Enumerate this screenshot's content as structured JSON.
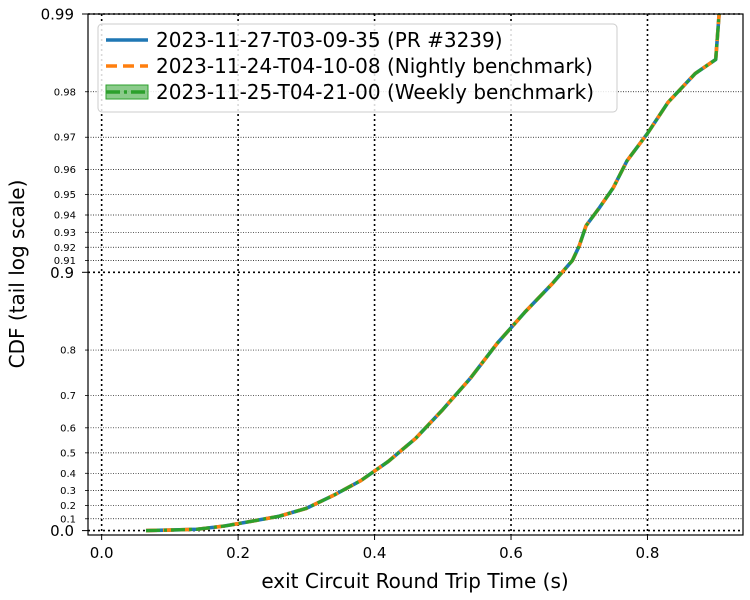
{
  "chart_data": {
    "type": "line",
    "xlabel": "exit Circuit Round Trip Time (s)",
    "ylabel": "CDF (tail log scale)",
    "xlim": [
      -0.02,
      0.94
    ],
    "x_ticks": [
      0.0,
      0.2,
      0.4,
      0.6,
      0.8
    ],
    "x_tick_labels": [
      "0.0",
      "0.2",
      "0.4",
      "0.6",
      "0.8"
    ],
    "y_scale": "tail log",
    "ylim": [
      -0.04,
      0.99
    ],
    "y_major_ticks": [
      0.0,
      0.9,
      0.99
    ],
    "y_major_labels": [
      "0.0",
      "0.9",
      "0.99"
    ],
    "y_minor_ticks": [
      0.1,
      0.2,
      0.3,
      0.4,
      0.5,
      0.6,
      0.7,
      0.8,
      0.91,
      0.92,
      0.93,
      0.94,
      0.95,
      0.96,
      0.97,
      0.98
    ],
    "y_minor_labels": [
      "0.1",
      "0.2",
      "0.3",
      "0.4",
      "0.5",
      "0.6",
      "0.7",
      "0.8",
      "0.91",
      "0.92",
      "0.93",
      "0.94",
      "0.95",
      "0.96",
      "0.97",
      "0.98"
    ],
    "grid": true,
    "legend_position": "top-left",
    "series": [
      {
        "name": "2023-11-27-T03-09-35 (PR #3239)",
        "color": "#1f77b4",
        "style": "solid",
        "x": [
          0.065,
          0.1,
          0.14,
          0.18,
          0.22,
          0.26,
          0.3,
          0.34,
          0.38,
          0.42,
          0.46,
          0.5,
          0.54,
          0.58,
          0.62,
          0.66,
          0.69,
          0.7,
          0.71,
          0.73,
          0.75,
          0.77,
          0.8,
          0.83,
          0.87,
          0.9,
          0.905
        ],
        "y": [
          0.0,
          0.005,
          0.012,
          0.04,
          0.08,
          0.12,
          0.18,
          0.27,
          0.36,
          0.46,
          0.56,
          0.66,
          0.742,
          0.812,
          0.857,
          0.889,
          0.91,
          0.921,
          0.934,
          0.944,
          0.953,
          0.963,
          0.971,
          0.978,
          0.983,
          0.985,
          0.99
        ]
      },
      {
        "name": "2023-11-24-T04-10-08 (Nightly benchmark)",
        "color": "#ff7f0e",
        "style": "dashed",
        "x": [
          0.065,
          0.1,
          0.14,
          0.18,
          0.22,
          0.26,
          0.3,
          0.34,
          0.38,
          0.42,
          0.46,
          0.5,
          0.54,
          0.58,
          0.62,
          0.66,
          0.69,
          0.7,
          0.71,
          0.73,
          0.75,
          0.77,
          0.8,
          0.83,
          0.87,
          0.9,
          0.905
        ],
        "y": [
          0.0,
          0.005,
          0.012,
          0.04,
          0.08,
          0.12,
          0.18,
          0.27,
          0.36,
          0.46,
          0.56,
          0.66,
          0.742,
          0.812,
          0.857,
          0.889,
          0.91,
          0.921,
          0.934,
          0.944,
          0.953,
          0.963,
          0.971,
          0.978,
          0.983,
          0.985,
          0.99
        ]
      },
      {
        "name": "2023-11-25-T04-21-00 (Weekly benchmark)",
        "color": "#2ca02c",
        "style": "dashdot",
        "x": [
          0.065,
          0.1,
          0.14,
          0.18,
          0.22,
          0.26,
          0.3,
          0.34,
          0.38,
          0.42,
          0.46,
          0.5,
          0.54,
          0.58,
          0.62,
          0.66,
          0.69,
          0.7,
          0.71,
          0.73,
          0.75,
          0.77,
          0.8,
          0.83,
          0.87,
          0.9,
          0.905
        ],
        "y": [
          0.0,
          0.005,
          0.012,
          0.04,
          0.08,
          0.12,
          0.18,
          0.27,
          0.36,
          0.46,
          0.56,
          0.66,
          0.742,
          0.812,
          0.857,
          0.889,
          0.91,
          0.921,
          0.934,
          0.944,
          0.953,
          0.963,
          0.971,
          0.978,
          0.983,
          0.985,
          0.99
        ]
      }
    ]
  }
}
